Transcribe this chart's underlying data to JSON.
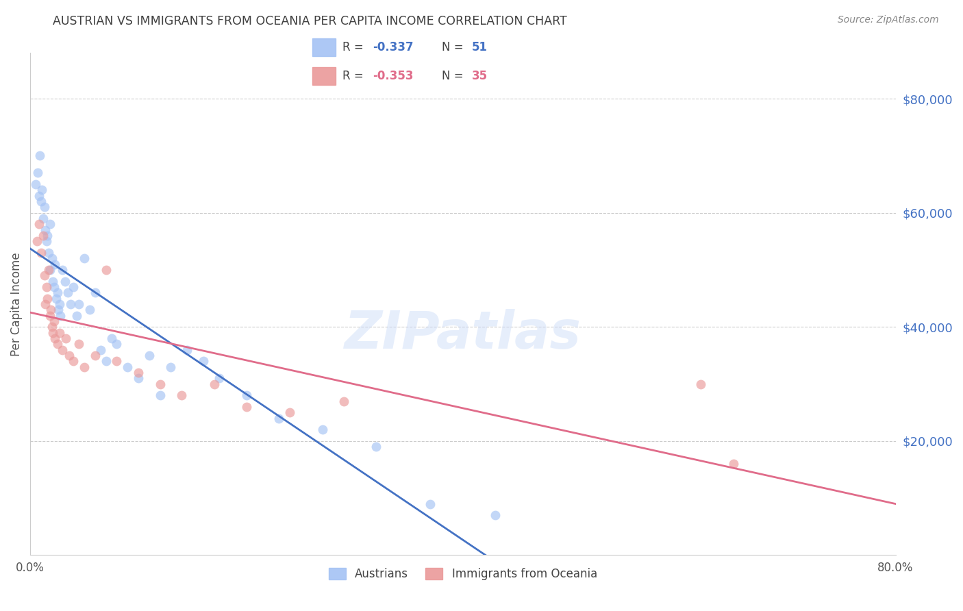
{
  "title": "AUSTRIAN VS IMMIGRANTS FROM OCEANIA PER CAPITA INCOME CORRELATION CHART",
  "source": "Source: ZipAtlas.com",
  "ylabel": "Per Capita Income",
  "ytick_labels": [
    "$20,000",
    "$40,000",
    "$60,000",
    "$80,000"
  ],
  "ytick_values": [
    20000,
    40000,
    60000,
    80000
  ],
  "ymin": 0,
  "ymax": 88000,
  "xmin": 0.0,
  "xmax": 0.8,
  "legend_r1": "R = -0.337",
  "legend_n1": "N = 51",
  "legend_r2": "R = -0.353",
  "legend_n2": "N = 35",
  "austrians_x": [
    0.005,
    0.007,
    0.008,
    0.009,
    0.01,
    0.011,
    0.012,
    0.013,
    0.014,
    0.015,
    0.016,
    0.017,
    0.018,
    0.018,
    0.02,
    0.021,
    0.022,
    0.023,
    0.024,
    0.025,
    0.026,
    0.027,
    0.028,
    0.03,
    0.032,
    0.035,
    0.037,
    0.04,
    0.043,
    0.045,
    0.05,
    0.055,
    0.06,
    0.065,
    0.07,
    0.075,
    0.08,
    0.09,
    0.1,
    0.11,
    0.12,
    0.13,
    0.145,
    0.16,
    0.175,
    0.2,
    0.23,
    0.27,
    0.32,
    0.37,
    0.43
  ],
  "austrians_y": [
    65000,
    67000,
    63000,
    70000,
    62000,
    64000,
    59000,
    61000,
    57000,
    55000,
    56000,
    53000,
    58000,
    50000,
    52000,
    48000,
    47000,
    51000,
    45000,
    46000,
    43000,
    44000,
    42000,
    50000,
    48000,
    46000,
    44000,
    47000,
    42000,
    44000,
    52000,
    43000,
    46000,
    36000,
    34000,
    38000,
    37000,
    33000,
    31000,
    35000,
    28000,
    33000,
    36000,
    34000,
    31000,
    28000,
    24000,
    22000,
    19000,
    9000,
    7000
  ],
  "oceania_x": [
    0.006,
    0.008,
    0.01,
    0.012,
    0.013,
    0.014,
    0.015,
    0.016,
    0.017,
    0.018,
    0.019,
    0.02,
    0.021,
    0.022,
    0.023,
    0.025,
    0.027,
    0.03,
    0.033,
    0.036,
    0.04,
    0.045,
    0.05,
    0.06,
    0.07,
    0.08,
    0.1,
    0.12,
    0.14,
    0.17,
    0.2,
    0.24,
    0.29,
    0.62,
    0.65
  ],
  "oceania_y": [
    55000,
    58000,
    53000,
    56000,
    49000,
    44000,
    47000,
    45000,
    50000,
    42000,
    43000,
    40000,
    39000,
    41000,
    38000,
    37000,
    39000,
    36000,
    38000,
    35000,
    34000,
    37000,
    33000,
    35000,
    50000,
    34000,
    32000,
    30000,
    28000,
    30000,
    26000,
    25000,
    27000,
    30000,
    16000
  ],
  "austrian_color": "#a4c2f4",
  "oceania_color": "#ea9999",
  "austrian_line_color": "#4472c4",
  "oceania_line_color": "#e06c8a",
  "trendline_extension_color": "#9fc5e8",
  "background_color": "#ffffff",
  "grid_color": "#cccccc",
  "tick_label_color": "#4472c4",
  "title_color": "#404040",
  "marker_size": 100,
  "marker_alpha": 0.65,
  "watermark_text": "ZIPatlas",
  "watermark_color": "#c9daf8",
  "watermark_fontsize": 55,
  "watermark_alpha": 0.45
}
